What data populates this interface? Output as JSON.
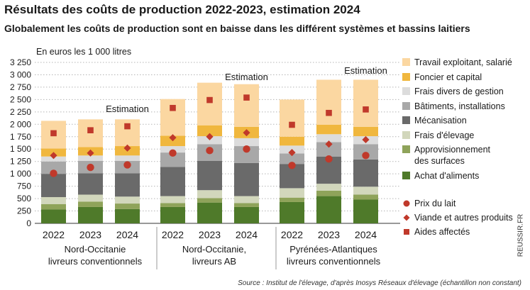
{
  "chart_data": {
    "type": "bar",
    "stacked": true,
    "title": "Résultats des coûts de production 2022-2023, estimation 2024",
    "subtitle": "Globalement les coûts de production sont en baisse dans les différent systèmes et bassins laitiers",
    "ylabel": "En euros les 1 000 litres",
    "ylim": [
      0,
      3250
    ],
    "yticks": [
      "0",
      "250",
      "500",
      "750",
      "1 000",
      "1 250",
      "1 500",
      "1 750",
      "2 000",
      "2 250",
      "2 500",
      "2 750",
      "3 000",
      "3 250"
    ],
    "categories": [
      "2022",
      "2023",
      "2024",
      "2022",
      "2023",
      "2024",
      "2022",
      "2023",
      "2024"
    ],
    "groups": [
      {
        "label_line1": "Nord-Occitanie",
        "label_line2": "livreurs conventionnels"
      },
      {
        "label_line1": "Nord-Occitanie,",
        "label_line2": "livreurs AB"
      },
      {
        "label_line1": "Pyrénées-Atlantiques",
        "label_line2": "livreurs conventionnels"
      }
    ],
    "annotations": [
      {
        "category_index": 2,
        "text": "Estimation"
      },
      {
        "category_index": 5,
        "text": "Estimation"
      },
      {
        "category_index": 8,
        "text": "Estimation"
      }
    ],
    "series": [
      {
        "name": "Achat d'aliments",
        "color": "#4f7a2a",
        "values": [
          280,
          330,
          290,
          330,
          420,
          330,
          430,
          550,
          480
        ]
      },
      {
        "name": "Approvisionnement des surfaces",
        "color": "#8fa35a",
        "values": [
          110,
          110,
          110,
          80,
          90,
          80,
          90,
          110,
          100
        ]
      },
      {
        "name": "Frais d'élevage",
        "color": "#d2d7bc",
        "values": [
          140,
          140,
          140,
          140,
          160,
          140,
          190,
          140,
          160
        ]
      },
      {
        "name": "Mécanisation",
        "color": "#6a6a6a",
        "values": [
          470,
          430,
          470,
          590,
          590,
          670,
          490,
          550,
          550
        ]
      },
      {
        "name": "Bâtiments, installations",
        "color": "#a8a8a8",
        "values": [
          250,
          250,
          250,
          290,
          340,
          340,
          210,
          290,
          310
        ]
      },
      {
        "name": "Frais divers de gestion",
        "color": "#dcdcdc",
        "values": [
          100,
          110,
          110,
          130,
          160,
          160,
          160,
          160,
          160
        ]
      },
      {
        "name": "Foncier et capital",
        "color": "#f0b73e",
        "values": [
          160,
          170,
          190,
          210,
          220,
          230,
          180,
          190,
          190
        ]
      },
      {
        "name": "Travail exploitant, salarié",
        "color": "#fbd7a1",
        "values": [
          560,
          560,
          540,
          740,
          860,
          860,
          750,
          910,
          950
        ]
      }
    ],
    "markers": [
      {
        "name": "Prix du lait",
        "shape": "circle",
        "color": "#c0392b",
        "values": [
          1010,
          1130,
          1180,
          1420,
          1470,
          1500,
          1170,
          1300,
          1370
        ]
      },
      {
        "name": "Viande et autres produits",
        "shape": "diamond",
        "color": "#c0392b",
        "values": [
          1370,
          1420,
          1520,
          1730,
          1750,
          1830,
          1430,
          1600,
          1690
        ]
      },
      {
        "name": "Aides affectés",
        "shape": "square",
        "color": "#c0392b",
        "values": [
          1820,
          1880,
          1960,
          2330,
          2490,
          2540,
          1990,
          2230,
          2300
        ]
      }
    ],
    "legend": {
      "position": "right",
      "items": [
        {
          "line1": "Travail exploitant, salarié",
          "line2": ""
        },
        {
          "line1": "Foncier et capital",
          "line2": ""
        },
        {
          "line1": "Frais divers de gestion",
          "line2": ""
        },
        {
          "line1": "Bâtiments, installations",
          "line2": ""
        },
        {
          "line1": "Mécanisation",
          "line2": ""
        },
        {
          "line1": "Frais d'élevage",
          "line2": ""
        },
        {
          "line1": "Approvisionnement",
          "line2": "des surfaces"
        },
        {
          "line1": "Achat d'aliments",
          "line2": ""
        }
      ]
    },
    "grid": true
  },
  "source": "Source : Institut de l'élevage, d'après Inosys Réseaux d'élevage (échantillon non constant)",
  "brand": "REUSSIR.FR"
}
